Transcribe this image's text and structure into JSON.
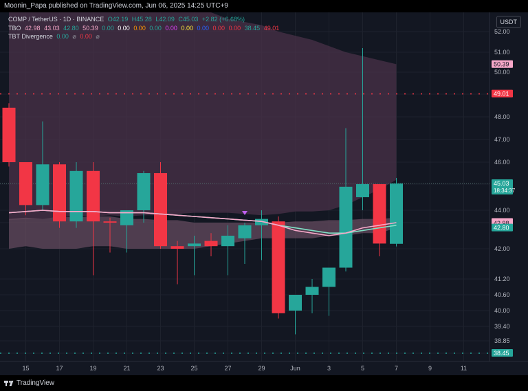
{
  "publish_line": "Moonin_Papa published on TradingView.com, Jun 06, 2025 14:25 UTC+9",
  "legend": {
    "line1": [
      "COMP / TetherUS · 1D · BINANCE",
      "O42.19",
      "H45.28",
      "L42.09",
      "C45.03",
      "+2.82 (+6.68%)"
    ],
    "line2": [
      "TBO",
      "42.98",
      "43.03",
      "42.80",
      "50.39",
      "0.00",
      "0.00",
      "0.00",
      "0.00",
      "0.00",
      "0.00",
      "0.00",
      "0.00",
      "0.00",
      "38.45",
      "49.01"
    ],
    "line3": [
      "TBT Divergence",
      "0.00",
      "⌀",
      "0.00",
      "⌀"
    ]
  },
  "currency_button": "USDT",
  "footer_logo": "TradingView",
  "colors": {
    "up": "#26a69a",
    "down": "#f23645",
    "background": "#131722",
    "cloud": "#4a3148",
    "band": "#6a4e63",
    "fast_line": "#f7a8c9",
    "slow_line": "#7fe0c5"
  },
  "chart_data": {
    "type": "candlestick",
    "symbol": "COMP / TetherUS",
    "interval": "1D",
    "exchange": "BINANCE",
    "y_range": [
      37.8,
      52.6
    ],
    "y_ticks": [
      "52.00",
      "51.00",
      "50.00",
      "49.00",
      "48.00",
      "47.00",
      "46.00",
      "45.00",
      "44.00",
      "43.00",
      "42.00",
      "41.20",
      "40.60",
      "40.00",
      "39.40",
      "38.85",
      "38.45"
    ],
    "x_ticks": [
      "15",
      "17",
      "19",
      "21",
      "23",
      "25",
      "27",
      "29",
      "Jun",
      "3",
      "5",
      "7",
      "9",
      "11"
    ],
    "x_tick_index": [
      1,
      3,
      5,
      7,
      9,
      11,
      13,
      15,
      17,
      19,
      21,
      23,
      25,
      27
    ],
    "candles": [
      {
        "o": 48.4,
        "h": 48.6,
        "l": 45.8,
        "c": 46.0
      },
      {
        "o": 46.0,
        "h": 46.0,
        "l": 43.6,
        "c": 44.2
      },
      {
        "o": 44.2,
        "h": 47.8,
        "l": 44.0,
        "c": 45.9
      },
      {
        "o": 45.9,
        "h": 46.0,
        "l": 42.8,
        "c": 43.1
      },
      {
        "o": 43.1,
        "h": 46.0,
        "l": 42.8,
        "c": 45.6
      },
      {
        "o": 45.6,
        "h": 46.0,
        "l": 41.3,
        "c": 43.1
      },
      {
        "o": 43.1,
        "h": 43.4,
        "l": 41.9,
        "c": 43.0
      },
      {
        "o": 42.9,
        "h": 44.0,
        "l": 41.9,
        "c": 44.0
      },
      {
        "o": 44.0,
        "h": 45.6,
        "l": 43.0,
        "c": 45.5
      },
      {
        "o": 45.5,
        "h": 46.0,
        "l": 42.0,
        "c": 42.1
      },
      {
        "o": 42.1,
        "h": 42.3,
        "l": 41.0,
        "c": 42.0
      },
      {
        "o": 42.1,
        "h": 42.5,
        "l": 41.3,
        "c": 42.2
      },
      {
        "o": 42.3,
        "h": 42.6,
        "l": 41.8,
        "c": 42.1
      },
      {
        "o": 42.1,
        "h": 42.9,
        "l": 41.3,
        "c": 42.5
      },
      {
        "o": 42.4,
        "h": 43.0,
        "l": 41.6,
        "c": 42.9
      },
      {
        "o": 42.9,
        "h": 44.0,
        "l": 41.7,
        "c": 43.3
      },
      {
        "o": 43.1,
        "h": 43.5,
        "l": 39.7,
        "c": 39.9
      },
      {
        "o": 40.0,
        "h": 40.6,
        "l": 39.1,
        "c": 40.6
      },
      {
        "o": 40.6,
        "h": 41.2,
        "l": 39.9,
        "c": 40.9
      },
      {
        "o": 40.9,
        "h": 41.5,
        "l": 39.8,
        "c": 41.5
      },
      {
        "o": 41.5,
        "h": 47.5,
        "l": 41.4,
        "c": 44.9
      },
      {
        "o": 44.5,
        "h": 51.2,
        "l": 44.0,
        "c": 45.0
      },
      {
        "o": 45.0,
        "h": 45.0,
        "l": 41.8,
        "c": 42.2
      },
      {
        "o": 42.19,
        "h": 45.28,
        "l": 42.09,
        "c": 45.03
      }
    ],
    "band_upper": [
      43.3,
      43.4,
      43.3,
      43.5,
      43.4,
      43.5,
      43.5,
      43.3,
      43.3,
      43.2,
      43.2,
      43.0,
      43.0,
      43.0,
      43.0,
      43.0,
      43.0,
      43.1,
      43.1,
      43.2,
      43.2,
      43.3,
      43.3,
      43.4
    ],
    "band_lower": [
      42.0,
      42.1,
      42.0,
      42.0,
      42.0,
      42.1,
      42.1,
      42.0,
      42.0,
      42.0,
      42.0,
      42.0,
      42.1,
      42.2,
      42.3,
      42.4,
      42.4,
      42.4,
      42.4,
      42.5,
      42.5,
      42.6,
      42.6,
      42.8
    ],
    "cloud_upper": [
      52.6,
      52.6,
      52.6,
      52.6,
      52.6,
      52.6,
      52.6,
      52.6,
      52.6,
      52.6,
      52.6,
      52.6,
      52.6,
      52.4,
      52.3,
      52.2,
      52.0,
      51.8,
      51.6,
      51.3,
      51.0,
      50.8,
      50.6,
      50.4
    ],
    "cloud_lower": [
      43.2,
      43.3,
      43.3,
      43.5,
      43.5,
      43.5,
      43.6,
      43.5,
      43.6,
      43.6,
      43.7,
      43.8,
      43.8,
      43.8,
      43.7,
      43.6,
      43.7,
      43.9,
      43.9,
      44.0,
      44.2,
      44.5,
      44.8,
      45.2
    ],
    "slow_line": [
      43.8,
      43.9,
      44.0,
      43.9,
      43.9,
      43.9,
      43.8,
      43.8,
      43.8,
      43.7,
      43.6,
      43.5,
      43.4,
      43.3,
      43.2,
      43.1,
      42.9,
      42.8,
      42.7,
      42.6,
      42.6,
      42.7,
      42.8,
      42.9
    ],
    "fast_line": [
      43.8,
      43.9,
      44.0,
      43.9,
      43.9,
      43.9,
      43.8,
      43.8,
      43.8,
      43.7,
      43.6,
      43.5,
      43.4,
      43.3,
      43.2,
      43.1,
      42.9,
      42.7,
      42.6,
      42.5,
      42.6,
      42.8,
      42.9,
      43.0
    ],
    "resistance_level": 49.01,
    "support_level": 38.45,
    "signal_marker": {
      "index": 14,
      "value": 43.5
    },
    "price_labels": [
      {
        "value": "50.39",
        "y": 50.39,
        "bg": "#f7a8c9",
        "fg": "#131722"
      },
      {
        "value": "49.01",
        "y": 49.01,
        "bg": "#f23645",
        "fg": "#ffffff"
      },
      {
        "value": "45.03",
        "y": 45.03,
        "bg": "#26a69a",
        "fg": "#ffffff",
        "sub": "18:34:37"
      },
      {
        "value": "43.03",
        "y": 43.03,
        "bg": "#f7a8c9",
        "fg": "#131722"
      },
      {
        "value": "42.98",
        "y": 42.98,
        "bg": "#f7a8c9",
        "fg": "#131722"
      },
      {
        "value": "42.80",
        "y": 42.8,
        "bg": "#26a69a",
        "fg": "#ffffff"
      },
      {
        "value": "38.45",
        "y": 38.45,
        "bg": "#26a69a",
        "fg": "#ffffff"
      }
    ]
  }
}
